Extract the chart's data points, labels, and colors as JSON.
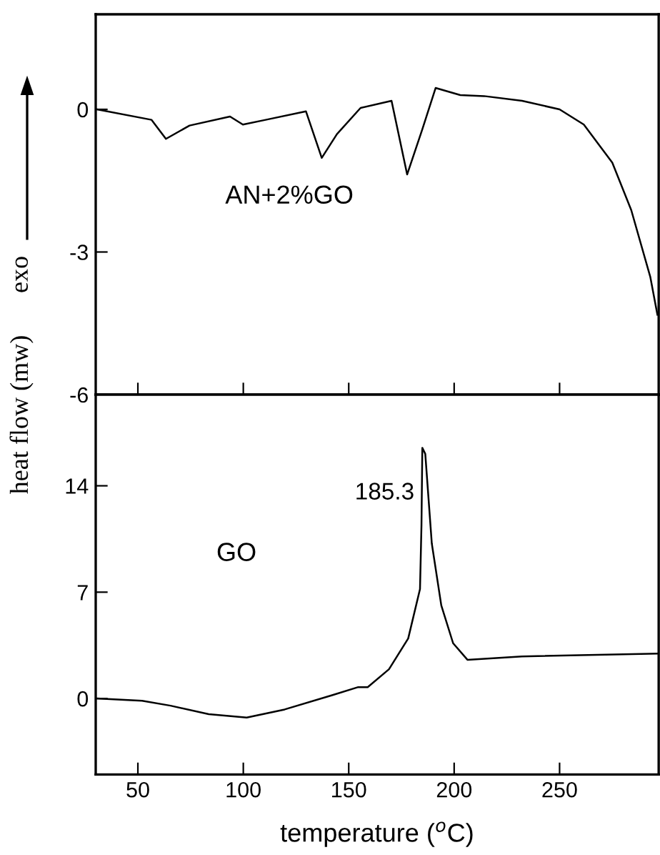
{
  "chart_data": [
    {
      "type": "line",
      "ylabel": "heat flow (mw)",
      "annotations": [
        "AN+2%GO",
        "exo"
      ],
      "xlim": [
        30,
        297
      ],
      "xticks": [
        50,
        100,
        150,
        200,
        250
      ],
      "ylim": [
        -6,
        2
      ],
      "yticks": [
        0,
        -3,
        -6
      ],
      "tick_labels": "y",
      "series": [
        {
          "color": "#000000",
          "x": [
            30.6,
            56.5,
            63.3,
            74.5,
            93.7,
            99.8,
            110.6,
            129.7,
            137.2,
            144.4,
            155.6,
            170.3,
            177.7,
            184.9,
            191.2,
            202.9,
            214.2,
            232.2,
            250,
            261.5,
            275,
            284,
            293,
            296.4
          ],
          "values": [
            0,
            -0.22,
            -0.62,
            -0.34,
            -0.15,
            -0.32,
            -0.22,
            -0.04,
            -1.02,
            -0.52,
            0.03,
            0.18,
            -1.37,
            -0.42,
            0.45,
            0.3,
            0.28,
            0.18,
            0,
            -0.32,
            -1.12,
            -2.12,
            -3.52,
            -4.32
          ]
        }
      ]
    },
    {
      "type": "line",
      "xlabel": "temperature ($^{o}$C)",
      "annotations": [
        "GO",
        {
          "text": "185.3",
          "x": 184.9,
          "y": 16.5
        }
      ],
      "xlim": [
        30,
        297
      ],
      "xticks": [
        50,
        100,
        150,
        200,
        250
      ],
      "ylim": [
        -5,
        20
      ],
      "yticks": [
        0,
        7,
        14
      ],
      "series": [
        {
          "color": "#000000",
          "x": [
            30.6,
            52,
            65.5,
            83.6,
            101.6,
            119.6,
            142.1,
            154.5,
            159,
            169.1,
            178.2,
            183.8,
            184.5,
            184.9,
            186.3,
            189.4,
            193.9,
            199.5,
            206.3,
            232.2,
            296.4
          ],
          "values": [
            0,
            -0.15,
            -0.47,
            -1.03,
            -1.25,
            -0.72,
            0.22,
            0.75,
            0.75,
            1.93,
            3.95,
            7.2,
            11.4,
            16.5,
            16.1,
            10.2,
            6.13,
            3.64,
            2.55,
            2.77,
            2.96
          ]
        }
      ]
    }
  ]
}
